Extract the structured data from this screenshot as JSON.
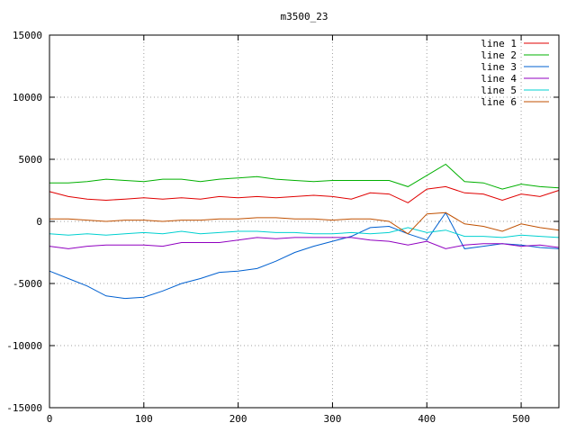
{
  "chart_data": {
    "type": "line",
    "title": "m3500_23",
    "xlim": [
      0,
      540
    ],
    "ylim": [
      -15000,
      15000
    ],
    "x_ticks": [
      0,
      100,
      200,
      300,
      400,
      500
    ],
    "y_ticks": [
      -15000,
      -10000,
      -5000,
      0,
      5000,
      10000,
      15000
    ],
    "grid": true,
    "legend_position": "top-right",
    "x_step": 20,
    "series": [
      {
        "name": "line 1",
        "color": "#e00000",
        "y": [
          2400,
          2000,
          1800,
          1700,
          1800,
          1900,
          1800,
          1900,
          1800,
          2000,
          1900,
          2000,
          1900,
          2000,
          2100,
          2000,
          1800,
          2300,
          2200,
          1500,
          2600,
          2800,
          2300,
          2200,
          1700,
          2200,
          2000,
          2500
        ]
      },
      {
        "name": "line 2",
        "color": "#00b000",
        "y": [
          3100,
          3100,
          3200,
          3400,
          3300,
          3200,
          3400,
          3400,
          3200,
          3400,
          3500,
          3600,
          3400,
          3300,
          3200,
          3300,
          3300,
          3300,
          3300,
          2800,
          3700,
          4600,
          3200,
          3100,
          2600,
          3000,
          2800,
          2700
        ]
      },
      {
        "name": "line 3",
        "color": "#0060d0",
        "y": [
          -4000,
          -4600,
          -5200,
          -6000,
          -6200,
          -6100,
          -5600,
          -5000,
          -4600,
          -4100,
          -4000,
          -3800,
          -3200,
          -2500,
          -2000,
          -1600,
          -1200,
          -500,
          -400,
          -1000,
          -1500,
          700,
          -2200,
          -2000,
          -1800,
          -1900,
          -2100,
          -2200
        ]
      },
      {
        "name": "line 4",
        "color": "#9000c0",
        "y": [
          -2000,
          -2200,
          -2000,
          -1900,
          -1900,
          -1900,
          -2000,
          -1700,
          -1700,
          -1700,
          -1500,
          -1300,
          -1400,
          -1300,
          -1300,
          -1300,
          -1300,
          -1500,
          -1600,
          -1900,
          -1600,
          -2200,
          -1900,
          -1800,
          -1800,
          -2000,
          -1900,
          -2100
        ]
      },
      {
        "name": "line 5",
        "color": "#00d0d0",
        "y": [
          -1000,
          -1100,
          -1000,
          -1100,
          -1000,
          -900,
          -1000,
          -800,
          -1000,
          -900,
          -800,
          -800,
          -900,
          -900,
          -1000,
          -1000,
          -900,
          -1000,
          -900,
          -500,
          -900,
          -700,
          -1200,
          -1200,
          -1300,
          -1100,
          -1200,
          -1300
        ]
      },
      {
        "name": "line 6",
        "color": "#c05000",
        "y": [
          200,
          200,
          100,
          0,
          100,
          100,
          0,
          100,
          100,
          200,
          200,
          300,
          300,
          200,
          200,
          100,
          200,
          200,
          0,
          -1000,
          600,
          700,
          -200,
          -400,
          -800,
          -200,
          -500,
          -700
        ]
      }
    ]
  }
}
